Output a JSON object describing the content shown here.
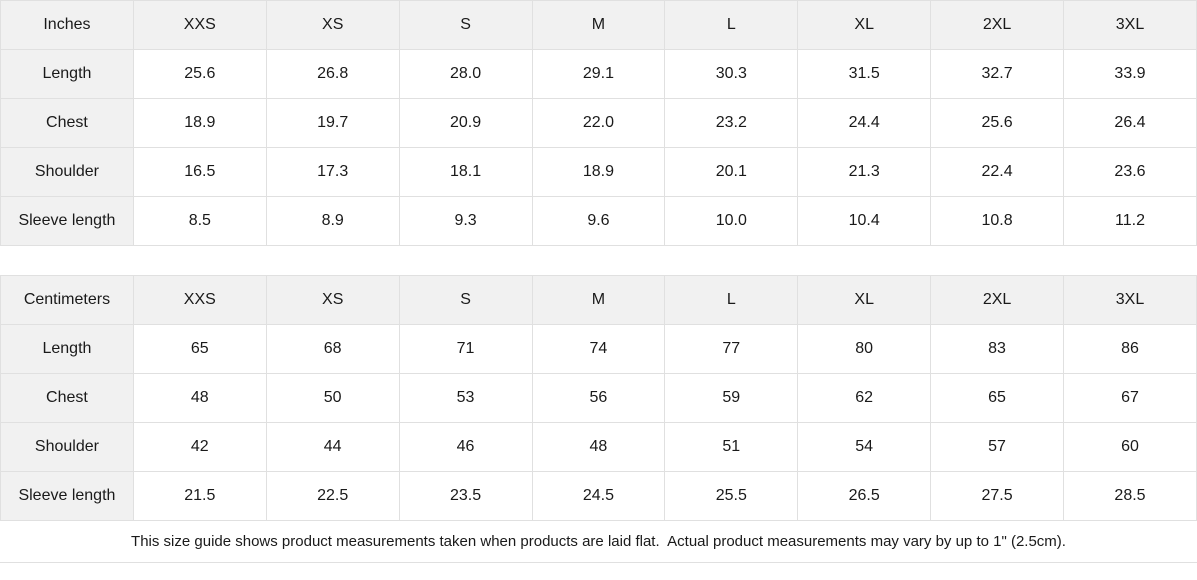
{
  "page": {
    "background": "#ffffff",
    "header_bg": "#f1f1f1",
    "border_color": "#e0e0e0",
    "text_color": "#1a1a1a"
  },
  "size_guide": {
    "tables": [
      {
        "id": "inches",
        "unit_label": "Inches",
        "sizes": [
          "XXS",
          "XS",
          "S",
          "M",
          "L",
          "XL",
          "2XL",
          "3XL"
        ],
        "rows": [
          {
            "label": "Length",
            "values": [
              "25.6",
              "26.8",
              "28.0",
              "29.1",
              "30.3",
              "31.5",
              "32.7",
              "33.9"
            ]
          },
          {
            "label": "Chest",
            "values": [
              "18.9",
              "19.7",
              "20.9",
              "22.0",
              "23.2",
              "24.4",
              "25.6",
              "26.4"
            ]
          },
          {
            "label": "Shoulder",
            "values": [
              "16.5",
              "17.3",
              "18.1",
              "18.9",
              "20.1",
              "21.3",
              "22.4",
              "23.6"
            ]
          },
          {
            "label": "Sleeve length",
            "values": [
              "8.5",
              "8.9",
              "9.3",
              "9.6",
              "10.0",
              "10.4",
              "10.8",
              "11.2"
            ]
          }
        ]
      },
      {
        "id": "centimeters",
        "unit_label": "Centimeters",
        "sizes": [
          "XXS",
          "XS",
          "S",
          "M",
          "L",
          "XL",
          "2XL",
          "3XL"
        ],
        "rows": [
          {
            "label": "Length",
            "values": [
              "65",
              "68",
              "71",
              "74",
              "77",
              "80",
              "83",
              "86"
            ]
          },
          {
            "label": "Chest",
            "values": [
              "48",
              "50",
              "53",
              "56",
              "59",
              "62",
              "65",
              "67"
            ]
          },
          {
            "label": "Shoulder",
            "values": [
              "42",
              "44",
              "46",
              "48",
              "51",
              "54",
              "57",
              "60"
            ]
          },
          {
            "label": "Sleeve length",
            "values": [
              "21.5",
              "22.5",
              "23.5",
              "24.5",
              "25.5",
              "26.5",
              "27.5",
              "28.5"
            ]
          }
        ]
      }
    ],
    "footnote": "This size guide shows product measurements taken when products are laid flat.  Actual product measurements may vary by up to 1\" (2.5cm)."
  }
}
